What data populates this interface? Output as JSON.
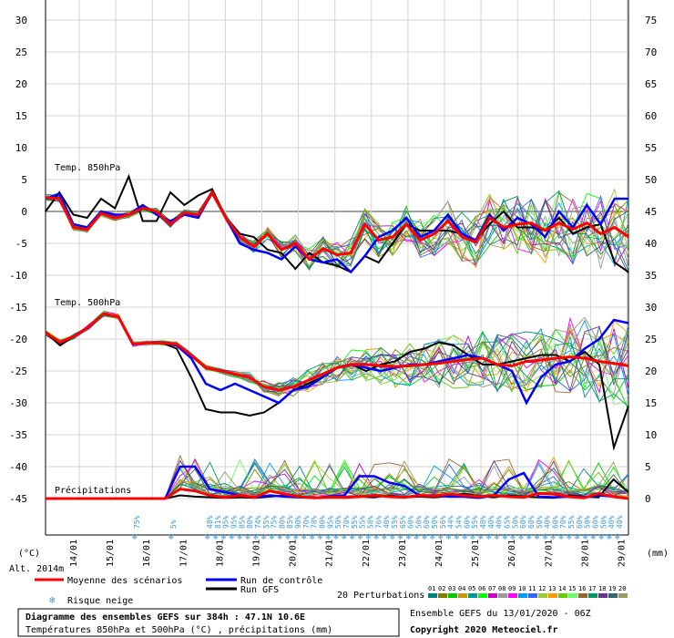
{
  "chart_data": {
    "type": "line",
    "title": "Diagramme des ensembles GEFS sur 384h : 47.1N 10.6E",
    "subtitle": "Températures 850hPa et 500hPa (°C) , précipitations (mm)",
    "run_info": "Ensemble GEFS du 13/01/2020 - 06Z",
    "copyright": "Copyright 2020 Meteociel.fr",
    "left_axis": {
      "unit_label": "(°C)",
      "ticks": [
        30,
        25,
        20,
        15,
        10,
        5,
        0,
        -5,
        -10,
        -15,
        -20,
        -25,
        -30,
        -35,
        -40,
        -45
      ],
      "range": [
        -45,
        30
      ]
    },
    "right_axis": {
      "unit_label": "(mm)",
      "ticks": [
        75,
        70,
        65,
        60,
        55,
        50,
        45,
        40,
        35,
        30,
        25,
        20,
        15,
        10,
        5,
        0
      ],
      "range": [
        0,
        75
      ]
    },
    "altitude": "Alt. 2014m",
    "date_labels": [
      "14/01",
      "15/01",
      "16/01",
      "17/01",
      "18/01",
      "19/01",
      "20/01",
      "21/01",
      "22/01",
      "23/01",
      "24/01",
      "25/01",
      "26/01",
      "27/01",
      "28/01",
      "29/01"
    ],
    "section_labels": {
      "t850": "Temp. 850hPa",
      "t500": "Temp. 500hPa",
      "precip": "Précipitations"
    },
    "snow_risk": [
      "75%",
      "5%",
      "48%",
      "81%",
      "95%",
      "95%",
      "85%",
      "80%",
      "74%",
      "55%",
      "75%",
      "80%",
      "85%",
      "90%",
      "70%",
      "78%",
      "80%",
      "95%",
      "50%",
      "70%",
      "55%",
      "55%",
      "58%",
      "76%",
      "40%",
      "55%",
      "65%",
      "60%",
      "50%",
      "60%",
      "50%",
      "56%",
      "44%",
      "54%",
      "60%",
      "55%",
      "48%",
      "40%",
      "40%",
      "65%",
      "50%",
      "60%",
      "60%",
      "50%",
      "40%",
      "60%",
      "70%",
      "55%",
      "60%",
      "50%",
      "60%",
      "50%",
      "40%",
      "40%"
    ],
    "legend": {
      "mean": "Moyenne des scénarios",
      "control": "Run de contrôle",
      "gfs": "Run GFS",
      "snow": "Risque neige",
      "perturbations": "20 Perturbations",
      "perturbation_ids": [
        "01",
        "02",
        "03",
        "04",
        "05",
        "06",
        "07",
        "08",
        "09",
        "10",
        "11",
        "12",
        "13",
        "14",
        "15",
        "16",
        "17",
        "18",
        "19",
        "20"
      ]
    },
    "colors": {
      "mean": "#ff0000",
      "control": "#0000ff",
      "gfs": "#000000",
      "snow": "#3a9ad9",
      "perturbations": [
        "#008080",
        "#808000",
        "#00cc00",
        "#cc9900",
        "#009999",
        "#00ff00",
        "#cc00cc",
        "#999999",
        "#ff00ff",
        "#0099ff",
        "#3366ff",
        "#99cc33",
        "#ff9900",
        "#66cc00",
        "#66ff66",
        "#996633",
        "#009966",
        "#663399",
        "#336666",
        "#999966"
      ]
    },
    "series": [
      {
        "name": "Moyenne des scénarios",
        "t850": [
          2.2,
          2,
          -2.5,
          -2.8,
          -0.3,
          -1,
          -0.5,
          0.5,
          0,
          -2,
          -0.2,
          -0.5,
          3,
          -1,
          -4,
          -5.5,
          -3.5,
          -6,
          -5,
          -7.5,
          -5.8,
          -6.8,
          -6.5,
          -2,
          -4.5,
          -4,
          -2,
          -4.5,
          -3.5,
          -1.5,
          -4,
          -4.8,
          -1,
          -2.5,
          -2,
          -1.8,
          -3,
          -1.8,
          -2.8,
          -1.8,
          -3.5,
          -2.5,
          -4
        ],
        "t500": [
          -19,
          -20.5,
          -19.5,
          -18,
          -16,
          -16.5,
          -20.8,
          -20.6,
          -20.6,
          -20.8,
          -22.5,
          -24.5,
          -25,
          -25.5,
          -26,
          -27.5,
          -28,
          -27.5,
          -26.5,
          -25.5,
          -24.5,
          -24,
          -24,
          -24.2,
          -24.3,
          -24.2,
          -24,
          -23.8,
          -23.5,
          -23.2,
          -23,
          -24,
          -24.2,
          -23.5,
          -23.3,
          -23,
          -22.8,
          -23,
          -23.5,
          -23.8,
          -24.2
        ],
        "precip": [
          0,
          0,
          0,
          0,
          0,
          0,
          0,
          0,
          0,
          1.5,
          1.2,
          0.5,
          0.2,
          0.5,
          0.2,
          1.2,
          0.7,
          0.3,
          0.1,
          0.2,
          0.2,
          0.3,
          0.5,
          0.3,
          0.2,
          0.5,
          0.4,
          0.7,
          0.5,
          0.3,
          0.5,
          0.3,
          0.2,
          0.8,
          0.7,
          0.3,
          0.1,
          0.8,
          0.3,
          0
        ]
      },
      {
        "name": "Run de contrôle",
        "t850": [
          2,
          2.8,
          -2,
          -2.5,
          0,
          -0.5,
          -0.5,
          1,
          -0.5,
          -1.5,
          -0.5,
          -1,
          3,
          -1,
          -5,
          -6,
          -6.5,
          -7.5,
          -5.5,
          -7.5,
          -8,
          -7.5,
          -9.5,
          -7,
          -4,
          -3,
          -1,
          -4,
          -3,
          -0.5,
          -3.5,
          -4.5,
          -0.5,
          -3,
          -1,
          -2,
          -4,
          0,
          -2.5,
          1,
          -2,
          2,
          2
        ],
        "t500": [
          -19,
          -20.5,
          -19.5,
          -18,
          -16,
          -16.5,
          -20.8,
          -20.6,
          -20.6,
          -21,
          -23,
          -27,
          -28,
          -27,
          -28,
          -29,
          -30,
          -28,
          -27.5,
          -26,
          -24.5,
          -24,
          -24.5,
          -25,
          -24.5,
          -24,
          -24,
          -23.5,
          -23,
          -22.5,
          -23,
          -24,
          -25,
          -30,
          -26,
          -24,
          -23.5,
          -21.5,
          -20,
          -17,
          -17.5
        ],
        "precip": [
          0,
          0,
          0,
          0,
          0,
          0,
          0,
          0,
          0,
          5,
          5,
          1.5,
          1,
          0.5,
          0.2,
          0.5,
          0.3,
          0.2,
          0.1,
          0.3,
          0.5,
          3.5,
          3.5,
          2.5,
          2,
          0.5,
          0.5,
          0.3,
          0.3,
          0.1,
          0.5,
          3,
          4,
          0.3,
          0.2,
          0.3,
          0.2,
          0.5,
          0.3,
          0
        ]
      },
      {
        "name": "Run GFS",
        "t850": [
          0,
          3,
          -0.5,
          -1,
          2,
          0.5,
          5.5,
          -1.5,
          -1.5,
          3,
          1,
          2.5,
          3.5,
          -1,
          -3.5,
          -4,
          -6,
          -6.5,
          -9,
          -6.5,
          -8,
          -8.5,
          -9.5,
          -7,
          -8,
          -5,
          -2,
          -3,
          -3,
          -3,
          -3.5,
          -4.5,
          -2,
          0,
          -2.5,
          -2.5,
          -3,
          -1,
          -3.5,
          -2.5,
          -2,
          -8,
          -9.5
        ],
        "t500": [
          -19,
          -21,
          -19.5,
          -18,
          -16,
          -16.5,
          -20.8,
          -20.6,
          -20.6,
          -21.5,
          -26,
          -31,
          -31.5,
          -31.5,
          -32,
          -31.5,
          -30,
          -28,
          -27,
          -26,
          -24.5,
          -24,
          -25,
          -24,
          -23.5,
          -22,
          -21.5,
          -20.5,
          -21,
          -22.5,
          -24,
          -24,
          -23.5,
          -23,
          -22.5,
          -22.5,
          -23.5,
          -22,
          -24,
          -37,
          -30.5
        ],
        "precip": [
          0,
          0,
          0,
          0,
          0,
          0,
          0,
          0,
          0,
          0.5,
          0.3,
          0.2,
          0.1,
          0.2,
          0.1,
          0.3,
          0.5,
          0.2,
          0.1,
          0.2,
          0.1,
          0.3,
          0.2,
          0.5,
          0.2,
          0.3,
          0.2,
          0.4,
          0.8,
          0.4,
          0.2,
          0.5,
          0.3,
          0.2,
          0.1,
          0.5,
          0.3,
          0.2,
          3,
          1
        ]
      }
    ]
  }
}
